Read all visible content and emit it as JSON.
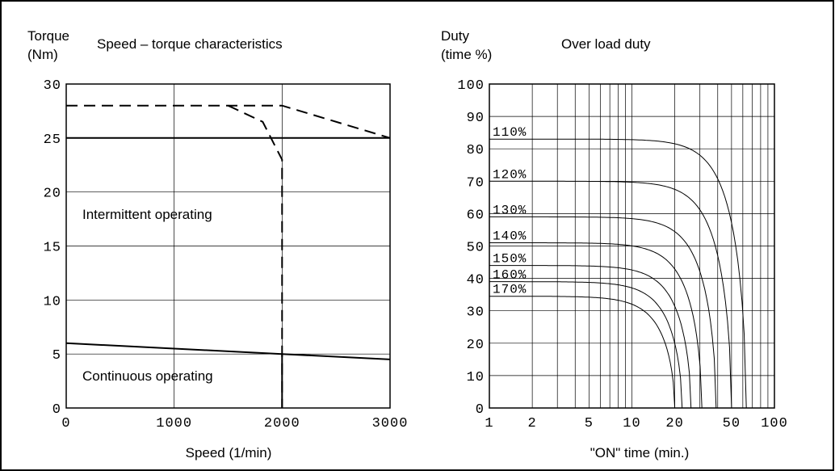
{
  "chart_data": [
    {
      "type": "line",
      "title": "Speed – torque characteristics",
      "ylabel_line1": "Torque",
      "ylabel_line2": "(Nm)",
      "xlabel": "Speed (1/min)",
      "xlim": [
        0,
        3000
      ],
      "ylim": [
        0,
        30
      ],
      "x_ticks": [
        0,
        1000,
        2000,
        3000
      ],
      "x_tick_labels": [
        "0",
        "1000",
        "2000",
        "3000"
      ],
      "y_ticks": [
        0,
        5,
        10,
        15,
        20,
        25,
        30
      ],
      "y_tick_labels": [
        "0",
        "5",
        "10",
        "15",
        "20",
        "25",
        "30"
      ],
      "grid": true,
      "region_labels": {
        "intermittent": "Intermittent operating",
        "continuous": "Continuous operating"
      },
      "series": [
        {
          "style": "solid",
          "x": [
            0,
            3000
          ],
          "y": [
            25,
            25
          ]
        },
        {
          "style": "solid",
          "x": [
            0,
            2000,
            3000
          ],
          "y": [
            6,
            5,
            4.5
          ]
        },
        {
          "style": "solid",
          "x": [
            2000,
            2000
          ],
          "y": [
            0,
            5
          ]
        },
        {
          "style": "dashed",
          "x": [
            0,
            2000,
            3000
          ],
          "y": [
            28,
            28,
            25
          ]
        },
        {
          "style": "dashed",
          "x": [
            1500,
            1820,
            2000,
            2000
          ],
          "y": [
            28,
            26.5,
            23,
            0
          ]
        }
      ]
    },
    {
      "type": "line",
      "title": "Over load duty",
      "ylabel_line1": "Duty",
      "ylabel_line2": "(time %)",
      "xlabel": "\"ON\" time (min.)",
      "x_scale": "log",
      "xlim": [
        1,
        100
      ],
      "ylim": [
        0,
        100
      ],
      "x_tick_labels": [
        "1",
        "2",
        "5",
        "10",
        "20",
        "50",
        "100"
      ],
      "x_tick_values": [
        1,
        2,
        5,
        10,
        20,
        50,
        100
      ],
      "y_tick_labels": [
        "0",
        "10",
        "20",
        "30",
        "40",
        "50",
        "60",
        "70",
        "80",
        "90",
        "100"
      ],
      "y_tick_values": [
        0,
        10,
        20,
        30,
        40,
        50,
        60,
        70,
        80,
        90,
        100
      ],
      "grid": true,
      "series": [
        {
          "name": "110%",
          "asymptote": 83,
          "cutoff": 63.5
        },
        {
          "name": "120%",
          "asymptote": 70,
          "cutoff": 50
        },
        {
          "name": "130%",
          "asymptote": 59,
          "cutoff": 39
        },
        {
          "name": "140%",
          "asymptote": 51,
          "cutoff": 31
        },
        {
          "name": "150%",
          "asymptote": 44,
          "cutoff": 26
        },
        {
          "name": "160%",
          "asymptote": 39,
          "cutoff": 22.5
        },
        {
          "name": "170%",
          "asymptote": 34.5,
          "cutoff": 20
        }
      ]
    }
  ]
}
